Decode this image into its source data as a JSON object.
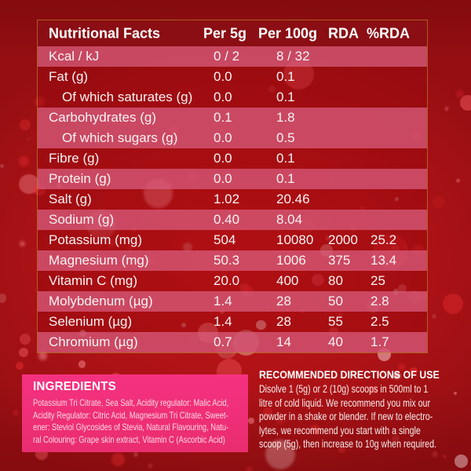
{
  "table": {
    "columns": [
      "Nutritional Facts",
      "Per 5g",
      "Per 100g",
      "RDA",
      "%RDA"
    ],
    "rows": [
      {
        "label": "Kcal / kJ",
        "per5g": "0 / 2",
        "per100g": "8 / 32",
        "rda": "",
        "rda_pct": "",
        "highlight": true,
        "indent": false
      },
      {
        "label": "Fat (g)",
        "per5g": "0.0",
        "per100g": "0.1",
        "rda": "",
        "rda_pct": "",
        "highlight": false,
        "indent": false
      },
      {
        "label": "Of which saturates (g)",
        "per5g": "0.0",
        "per100g": "0.1",
        "rda": "",
        "rda_pct": "",
        "highlight": false,
        "indent": true
      },
      {
        "label": "Carbohydrates (g)",
        "per5g": "0.1",
        "per100g": "1.8",
        "rda": "",
        "rda_pct": "",
        "highlight": true,
        "indent": false
      },
      {
        "label": "Of which sugars (g)",
        "per5g": "0.0",
        "per100g": "0.5",
        "rda": "",
        "rda_pct": "",
        "highlight": true,
        "indent": true
      },
      {
        "label": "Fibre (g)",
        "per5g": "0.0",
        "per100g": "0.1",
        "rda": "",
        "rda_pct": "",
        "highlight": false,
        "indent": false
      },
      {
        "label": "Protein (g)",
        "per5g": "0.0",
        "per100g": "0.1",
        "rda": "",
        "rda_pct": "",
        "highlight": true,
        "indent": false
      },
      {
        "label": "Salt (g)",
        "per5g": "1.02",
        "per100g": "20.46",
        "rda": "",
        "rda_pct": "",
        "highlight": false,
        "indent": false
      },
      {
        "label": "Sodium (g)",
        "per5g": "0.40",
        "per100g": "8.04",
        "rda": "",
        "rda_pct": "",
        "highlight": true,
        "indent": false
      },
      {
        "label": "Potassium (mg)",
        "per5g": "504",
        "per100g": "10080",
        "rda": "2000",
        "rda_pct": "25.2",
        "highlight": false,
        "indent": false
      },
      {
        "label": "Magnesium (mg)",
        "per5g": "50.3",
        "per100g": "1006",
        "rda": "375",
        "rda_pct": "13.4",
        "highlight": true,
        "indent": false
      },
      {
        "label": "Vitamin C (mg)",
        "per5g": "20.0",
        "per100g": "400",
        "rda": "80",
        "rda_pct": "25",
        "highlight": false,
        "indent": false
      },
      {
        "label": "Molybdenum (µg)",
        "per5g": "1.4",
        "per100g": "28",
        "rda": "50",
        "rda_pct": "2.8",
        "highlight": true,
        "indent": false
      },
      {
        "label": "Selenium (µg)",
        "per5g": "1.4",
        "per100g": "28",
        "rda": "55",
        "rda_pct": "2.5",
        "highlight": false,
        "indent": false
      },
      {
        "label": "Chromium (µg)",
        "per5g": "0.7",
        "per100g": "14",
        "rda": "40",
        "rda_pct": "1.7",
        "highlight": true,
        "indent": false
      }
    ]
  },
  "ingredients": {
    "title": "INGREDIENTS",
    "lines": [
      "Potassium Tri Citrate, Sea Salt, Acidity regulator: Malic Acid,",
      "Acidity Regulator: Citric Acid, Magnesium Tri Citrate, Sweet-",
      "ener: Steviol Glycosides of Stevia, Natural Flavouring, Natu-",
      "ral Colouring: Grape skin extract, Vitamin C (Ascorbic Acid)"
    ]
  },
  "directions": {
    "title": "RECOMMENDED DIRECTIONS OF USE",
    "lines": [
      "Disolve 1 (5g) or 2 (10g) scoops in 500ml to 1",
      "litre of cold liquid. We recommend you mix our",
      "powder in a shake or blender. If new to electro-",
      "lytes, we recommend you start with a single",
      "scoop (5g), then increase to 10g when required."
    ]
  },
  "colors": {
    "background_red": "#ad1216",
    "row_highlight_pink": "#cb4963",
    "header_strip": "#8a0f15",
    "ingredients_pink": "#ee2e74",
    "table_border_gold": "#ba872d",
    "text_white": "#ffffff"
  }
}
